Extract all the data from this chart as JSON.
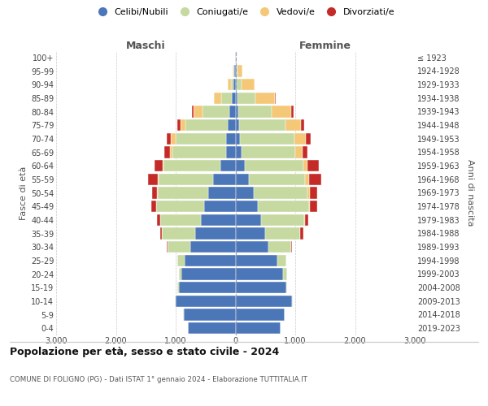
{
  "age_groups": [
    "0-4",
    "5-9",
    "10-14",
    "15-19",
    "20-24",
    "25-29",
    "30-34",
    "35-39",
    "40-44",
    "45-49",
    "50-54",
    "55-59",
    "60-64",
    "65-69",
    "70-74",
    "75-79",
    "80-84",
    "85-89",
    "90-94",
    "95-99",
    "100+"
  ],
  "birth_years": [
    "2019-2023",
    "2014-2018",
    "2009-2013",
    "2004-2008",
    "1999-2003",
    "1994-1998",
    "1989-1993",
    "1984-1988",
    "1979-1983",
    "1974-1978",
    "1969-1973",
    "1964-1968",
    "1959-1963",
    "1954-1958",
    "1949-1953",
    "1944-1948",
    "1939-1943",
    "1934-1938",
    "1929-1933",
    "1924-1928",
    "≤ 1923"
  ],
  "colors": {
    "celibe": "#4B76B8",
    "coniugato": "#C5D9A0",
    "vedovo": "#F5C878",
    "divorziato": "#C42B28"
  },
  "maschi": {
    "celibe": [
      800,
      870,
      1000,
      950,
      900,
      850,
      750,
      680,
      580,
      520,
      450,
      380,
      250,
      160,
      150,
      130,
      100,
      60,
      30,
      20,
      5
    ],
    "coniugato": [
      0,
      5,
      10,
      20,
      50,
      120,
      380,
      550,
      680,
      800,
      850,
      900,
      950,
      900,
      850,
      700,
      450,
      180,
      40,
      10,
      0
    ],
    "vedovo": [
      0,
      0,
      0,
      0,
      0,
      0,
      0,
      0,
      5,
      5,
      10,
      15,
      20,
      40,
      80,
      90,
      150,
      120,
      60,
      15,
      0
    ],
    "divorziato": [
      0,
      0,
      0,
      0,
      0,
      0,
      15,
      30,
      50,
      80,
      90,
      170,
      130,
      90,
      70,
      50,
      30,
      5,
      0,
      0,
      0
    ]
  },
  "femmine": {
    "nubile": [
      750,
      820,
      950,
      850,
      800,
      700,
      550,
      500,
      430,
      380,
      300,
      220,
      150,
      100,
      80,
      60,
      50,
      30,
      20,
      15,
      5
    ],
    "coniugata": [
      0,
      5,
      10,
      20,
      60,
      150,
      380,
      580,
      720,
      850,
      900,
      950,
      980,
      900,
      900,
      780,
      550,
      300,
      80,
      20,
      0
    ],
    "vedova": [
      0,
      0,
      0,
      0,
      0,
      0,
      0,
      5,
      10,
      20,
      40,
      60,
      80,
      120,
      200,
      250,
      330,
      330,
      220,
      80,
      10
    ],
    "divorziata": [
      0,
      0,
      0,
      0,
      0,
      5,
      15,
      50,
      60,
      120,
      130,
      200,
      180,
      80,
      80,
      60,
      40,
      10,
      0,
      0,
      0
    ]
  },
  "xlim": 3000,
  "title": "Popolazione per età, sesso e stato civile - 2024",
  "subtitle": "COMUNE DI FOLIGNO (PG) - Dati ISTAT 1° gennaio 2024 - Elaborazione TUTTITALIA.IT",
  "ylabel_left": "Fasce di età",
  "ylabel_right": "Anni di nascita",
  "xlabel_left": "Maschi",
  "xlabel_right": "Femmine",
  "bg_color": "#FFFFFF",
  "grid_color": "#BBBBBB",
  "bar_height": 0.85
}
